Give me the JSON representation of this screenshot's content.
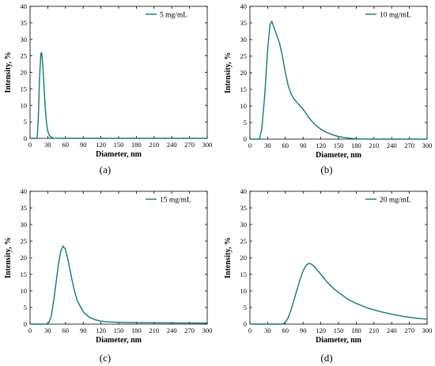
{
  "style": {
    "line_color": "#0f7a74",
    "axis_color": "#000000",
    "background": "#ffffff"
  },
  "chart_data": [
    {
      "type": "line",
      "panel_label": "(a)",
      "xlabel": "Diameter, nm",
      "ylabel": "Intensity, %",
      "xlim": [
        0,
        300
      ],
      "ylim": [
        0,
        40
      ],
      "xticks": [
        0,
        30,
        60,
        90,
        120,
        150,
        180,
        210,
        240,
        270,
        300
      ],
      "yticks": [
        0,
        5,
        10,
        15,
        20,
        25,
        30,
        35,
        40
      ],
      "grid": false,
      "legend_position": "top-right",
      "series": [
        {
          "name": "5 mg/mL",
          "x": [
            0,
            12,
            14,
            16,
            18,
            19,
            20,
            22,
            24,
            26,
            28,
            30,
            32,
            35,
            40,
            50,
            300
          ],
          "y": [
            0,
            0,
            6,
            18,
            25,
            26,
            25.5,
            21,
            14.5,
            8.5,
            4.5,
            2.2,
            1.1,
            0.4,
            0.05,
            0,
            0
          ]
        }
      ]
    },
    {
      "type": "line",
      "panel_label": "(b)",
      "xlabel": "Diameter, nm",
      "ylabel": "Intensity, %",
      "xlim": [
        0,
        300
      ],
      "ylim": [
        0,
        40
      ],
      "xticks": [
        0,
        30,
        60,
        90,
        120,
        150,
        180,
        210,
        240,
        270,
        300
      ],
      "yticks": [
        0,
        5,
        10,
        15,
        20,
        25,
        30,
        35,
        40
      ],
      "grid": false,
      "legend_position": "top-right",
      "series": [
        {
          "name": "10 mg/mL",
          "x": [
            0,
            16,
            20,
            25,
            30,
            34,
            37,
            40,
            45,
            50,
            55,
            60,
            65,
            70,
            75,
            80,
            85,
            90,
            95,
            100,
            110,
            120,
            130,
            140,
            150,
            160,
            170,
            180,
            200,
            300
          ],
          "y": [
            0,
            0,
            3,
            13,
            27,
            34.5,
            35.5,
            34,
            31.5,
            29,
            25,
            20,
            16,
            13.5,
            12,
            11,
            10,
            9,
            7.8,
            6.4,
            4.4,
            3,
            2,
            1.3,
            0.8,
            0.5,
            0.25,
            0.1,
            0,
            0
          ]
        }
      ]
    },
    {
      "type": "line",
      "panel_label": "(c)",
      "xlabel": "Diameter, nm",
      "ylabel": "Intensity, %",
      "xlim": [
        0,
        300
      ],
      "ylim": [
        0,
        40
      ],
      "xticks": [
        0,
        30,
        60,
        90,
        120,
        150,
        180,
        210,
        240,
        270,
        300
      ],
      "yticks": [
        0,
        5,
        10,
        15,
        20,
        25,
        30,
        35,
        40
      ],
      "grid": false,
      "legend_position": "top-right",
      "series": [
        {
          "name": "15 mg/mL",
          "x": [
            0,
            28,
            32,
            36,
            40,
            44,
            48,
            52,
            56,
            60,
            64,
            68,
            72,
            76,
            80,
            90,
            100,
            110,
            120,
            130,
            140,
            160,
            200,
            300
          ],
          "y": [
            0,
            0,
            0.5,
            2.5,
            7,
            12.5,
            18,
            22,
            23.5,
            22.5,
            19.5,
            16,
            12.5,
            9.5,
            7,
            3.7,
            2.1,
            1.3,
            0.9,
            0.7,
            0.6,
            0.5,
            0.4,
            0.3
          ]
        }
      ]
    },
    {
      "type": "line",
      "panel_label": "(d)",
      "xlabel": "Diameter, nm",
      "ylabel": "Intensity, %",
      "xlim": [
        0,
        300
      ],
      "ylim": [
        0,
        40
      ],
      "xticks": [
        0,
        30,
        60,
        90,
        120,
        150,
        180,
        210,
        240,
        270,
        300
      ],
      "yticks": [
        0,
        5,
        10,
        15,
        20,
        25,
        30,
        35,
        40
      ],
      "grid": false,
      "legend_position": "top-right",
      "series": [
        {
          "name": "20 mg/mL",
          "x": [
            0,
            55,
            60,
            65,
            70,
            75,
            80,
            85,
            90,
            95,
            100,
            105,
            110,
            120,
            130,
            140,
            150,
            165,
            180,
            200,
            220,
            240,
            260,
            280,
            300
          ],
          "y": [
            0,
            0,
            0.5,
            2,
            4.5,
            7.5,
            10.5,
            13.5,
            16,
            17.7,
            18.3,
            18,
            17.2,
            15,
            12.8,
            11,
            9.5,
            7.6,
            6.2,
            4.8,
            3.8,
            3,
            2.3,
            1.8,
            1.5
          ]
        }
      ]
    }
  ]
}
